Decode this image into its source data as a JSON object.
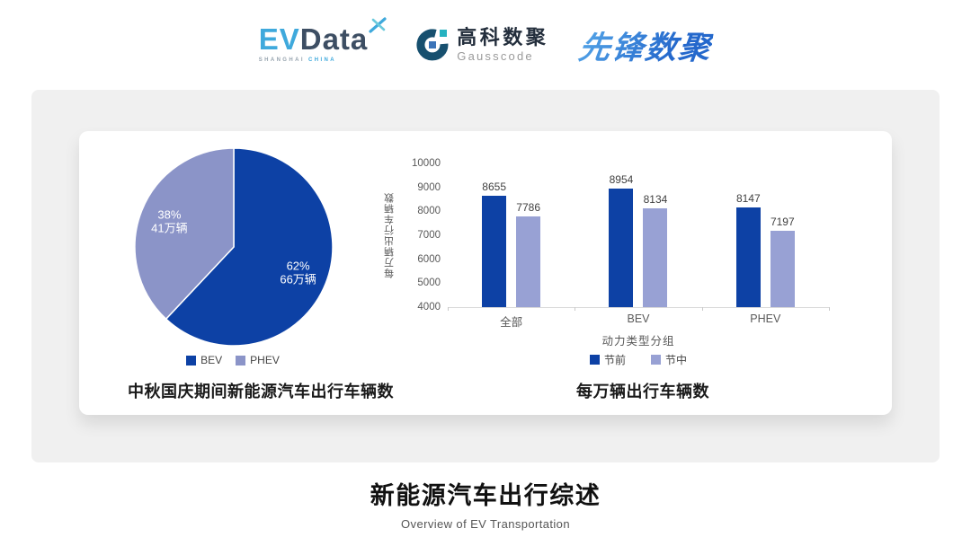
{
  "header": {
    "logo_evdata": {
      "part1": "EV",
      "part2": "Data",
      "subtext1": "SHANGHAI",
      "subtext2": "CHINA"
    },
    "logo_gausscode": {
      "name_cn": "高科数聚",
      "name_en": "Gausscode"
    },
    "logo_pioneer": {
      "text": "先锋数聚"
    }
  },
  "chart_data": [
    {
      "type": "pie",
      "title": "中秋国庆期间新能源汽车出行车辆数",
      "start_angle": 0,
      "direction": "clockwise",
      "legend_position": "bottom",
      "slices": [
        {
          "label": "BEV",
          "percent": 62,
          "percent_text": "62%",
          "value_text": "66万辆",
          "color": "#0D41A5",
          "label_color": "#ffffff"
        },
        {
          "label": "PHEV",
          "percent": 38,
          "percent_text": "38%",
          "value_text": "41万辆",
          "color": "#8B94C8",
          "label_color": "#ffffff"
        }
      ]
    },
    {
      "type": "bar",
      "title": "每万辆出行车辆数",
      "categories": [
        "全部",
        "BEV",
        "PHEV"
      ],
      "series": [
        {
          "name": "节前",
          "values": [
            8655,
            8954,
            8147
          ],
          "color": "#0D41A5"
        },
        {
          "name": "节中",
          "values": [
            7786,
            8134,
            7197
          ],
          "color": "#98A1D4"
        }
      ],
      "xlabel": "动力类型分组",
      "ylabel": "每万辆出行车辆数",
      "ylim": [
        4000,
        10000
      ],
      "yticks": [
        4000,
        5000,
        6000,
        7000,
        8000,
        9000,
        10000
      ],
      "grid": false,
      "value_labels": true,
      "legend_position": "bottom"
    }
  ],
  "footer": {
    "title": "新能源汽车出行综述",
    "subtitle": "Overview of EV Transportation"
  },
  "colors": {
    "page_bg": "#ffffff",
    "panel_bg": "#f0f0f0",
    "card_bg": "#ffffff",
    "primary_dark_blue": "#0D41A5",
    "secondary_light_blue": "#98A1D4",
    "pie_phev": "#8B94C8",
    "axis_text": "#595959",
    "value_label_text": "#404040",
    "title_text": "#1a1a1a",
    "evdata_blue": "#3FA9DC",
    "evdata_dark": "#3D4E63",
    "gausscode_dark": "#232E3C",
    "pioneer_blue": "#2E79D2"
  }
}
